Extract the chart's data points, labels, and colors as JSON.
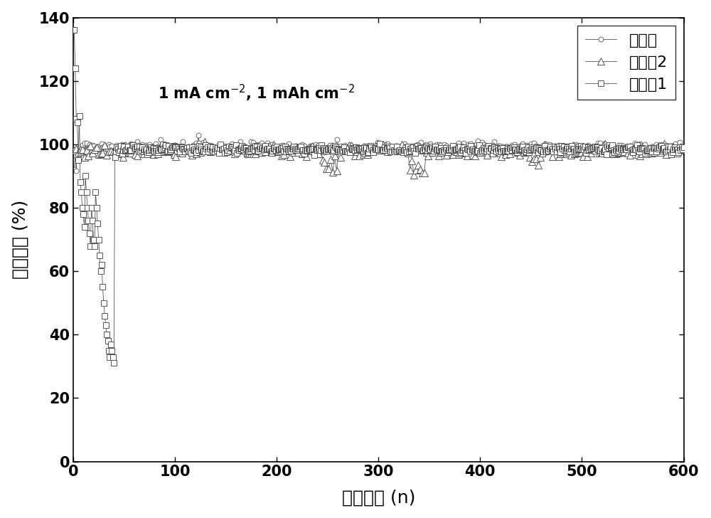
{
  "xlabel": "循环圈数 (n)",
  "ylabel": "库伦效率 (%)",
  "annotation_line1": "1 mA cm",
  "annotation_line2": "1 mAh cm",
  "xlim": [
    0,
    600
  ],
  "ylim": [
    0,
    140
  ],
  "yticks": [
    0,
    20,
    40,
    60,
    80,
    100,
    120,
    140
  ],
  "xticks": [
    0,
    100,
    200,
    300,
    400,
    500,
    600
  ],
  "legend_label1": "对照组1",
  "legend_label2": "对照组2",
  "legend_label3": "实验组",
  "line_color": "#555555",
  "background": "#ffffff",
  "label_fontsize": 18,
  "tick_fontsize": 15,
  "legend_fontsize": 16,
  "annot_fontsize": 15,
  "linewidth": 0.6,
  "marker_size_sq": 6,
  "marker_size_tri": 7,
  "marker_size_circ": 5,
  "group1_early_x": [
    1,
    2,
    3,
    4,
    5,
    6,
    7,
    8,
    9,
    10,
    11,
    12,
    13,
    14,
    15,
    16,
    17,
    18,
    19,
    20,
    21,
    22,
    23,
    24,
    25,
    26,
    27,
    28,
    29,
    30,
    31,
    32,
    33,
    34,
    35,
    36,
    37,
    38,
    39,
    40,
    41
  ],
  "group1_early_y": [
    136,
    124,
    108,
    107,
    95,
    109,
    88,
    85,
    80,
    78,
    74,
    90,
    85,
    80,
    76,
    72,
    68,
    80,
    76,
    70,
    68,
    85,
    80,
    75,
    70,
    65,
    60,
    62,
    55,
    50,
    46,
    43,
    40,
    38,
    35,
    33,
    37,
    35,
    33,
    31,
    96
  ]
}
